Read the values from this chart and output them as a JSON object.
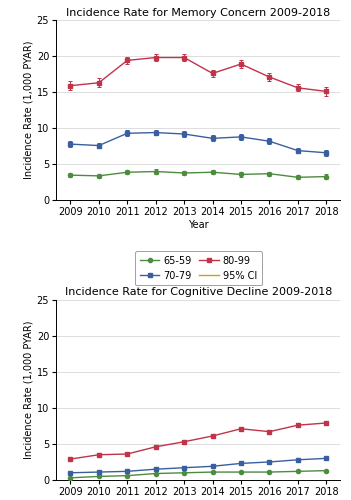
{
  "years": [
    2009,
    2010,
    2011,
    2012,
    2013,
    2014,
    2015,
    2016,
    2017,
    2018
  ],
  "memory_65_59": [
    3.5,
    3.4,
    3.9,
    4.0,
    3.8,
    3.9,
    3.6,
    3.7,
    3.2,
    3.3
  ],
  "memory_70_79": [
    7.8,
    7.6,
    9.3,
    9.4,
    9.2,
    8.6,
    8.8,
    8.2,
    6.9,
    6.6
  ],
  "memory_80_99": [
    15.9,
    16.3,
    19.4,
    19.8,
    19.8,
    17.6,
    18.9,
    17.1,
    15.6,
    15.1
  ],
  "memory_65_59_ci": [
    0.3,
    0.3,
    0.3,
    0.3,
    0.3,
    0.3,
    0.3,
    0.3,
    0.3,
    0.3
  ],
  "memory_70_79_ci": [
    0.4,
    0.4,
    0.4,
    0.4,
    0.4,
    0.4,
    0.4,
    0.4,
    0.4,
    0.4
  ],
  "memory_80_99_ci": [
    0.6,
    0.6,
    0.5,
    0.5,
    0.5,
    0.5,
    0.5,
    0.5,
    0.5,
    0.6
  ],
  "cog_65_59": [
    0.3,
    0.5,
    0.6,
    0.9,
    1.0,
    1.1,
    1.1,
    1.1,
    1.2,
    1.3
  ],
  "cog_70_79": [
    1.0,
    1.1,
    1.2,
    1.5,
    1.7,
    1.9,
    2.3,
    2.5,
    2.8,
    3.0
  ],
  "cog_80_99": [
    2.9,
    3.5,
    3.6,
    4.6,
    5.3,
    6.1,
    7.1,
    6.7,
    7.6,
    7.9
  ],
  "cog_65_59_ci": [
    0.08,
    0.08,
    0.08,
    0.08,
    0.08,
    0.08,
    0.08,
    0.08,
    0.08,
    0.08
  ],
  "cog_70_79_ci": [
    0.12,
    0.12,
    0.12,
    0.12,
    0.12,
    0.12,
    0.12,
    0.12,
    0.12,
    0.12
  ],
  "cog_80_99_ci": [
    0.2,
    0.2,
    0.2,
    0.2,
    0.2,
    0.2,
    0.25,
    0.25,
    0.25,
    0.25
  ],
  "color_65_59": "#4d8c3f",
  "color_70_79": "#3a5fa0",
  "color_80_99": "#c0334a",
  "color_ci": "#c8a020",
  "title_memory": "Incidence Rate for Memory Concern 2009-2018",
  "title_cog": "Incidence Rate for Cognitive Decline 2009-2018",
  "ylabel": "Incidence Rate (1,000 PYAR)",
  "xlabel": "Year",
  "ylim_memory": [
    0,
    25
  ],
  "ylim_cog": [
    0,
    25
  ],
  "yticks": [
    0,
    5,
    10,
    15,
    20,
    25
  ],
  "legend_65_59": "65-59",
  "legend_70_79": "70-79",
  "legend_80_99": "80-99",
  "legend_ci": "95% CI",
  "bg_color": "#ffffff",
  "title_fontsize": 8,
  "label_fontsize": 7,
  "tick_fontsize": 7,
  "legend_fontsize": 7
}
